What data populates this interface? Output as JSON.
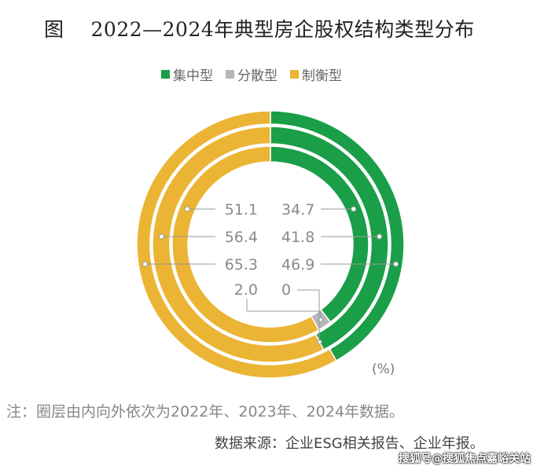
{
  "title": {
    "fig": "图",
    "text": "2022—2024年典型房企股权结构类型分布"
  },
  "chart_data": {
    "type": "donut",
    "title": "2022—2024年典型房企股权结构类型分布",
    "legend_position": "top",
    "unit": "(%)",
    "categories": [
      "集中型",
      "分散型",
      "制衡型"
    ],
    "colors": [
      "#1a9e48",
      "#b7b7b7",
      "#ebb434"
    ],
    "rings": [
      {
        "year": "2022",
        "values": [
          34.7,
          2.0,
          51.1
        ],
        "labels": [
          "34.7",
          "2.0",
          "51.1"
        ]
      },
      {
        "year": "2023",
        "values": [
          41.8,
          0,
          56.4
        ],
        "labels": [
          "41.8",
          "0",
          "56.4"
        ]
      },
      {
        "year": "2024",
        "values": [
          46.9,
          0,
          65.3
        ],
        "labels": [
          "46.9",
          "",
          "65.3"
        ]
      }
    ]
  },
  "note": "注：圈层由内向外依次为2022年、2023年、2024年数据。",
  "source": "数据来源：企业ESG相关报告、企业年报。",
  "watermark": "搜狐号@搜狐焦点嘉峪关站"
}
